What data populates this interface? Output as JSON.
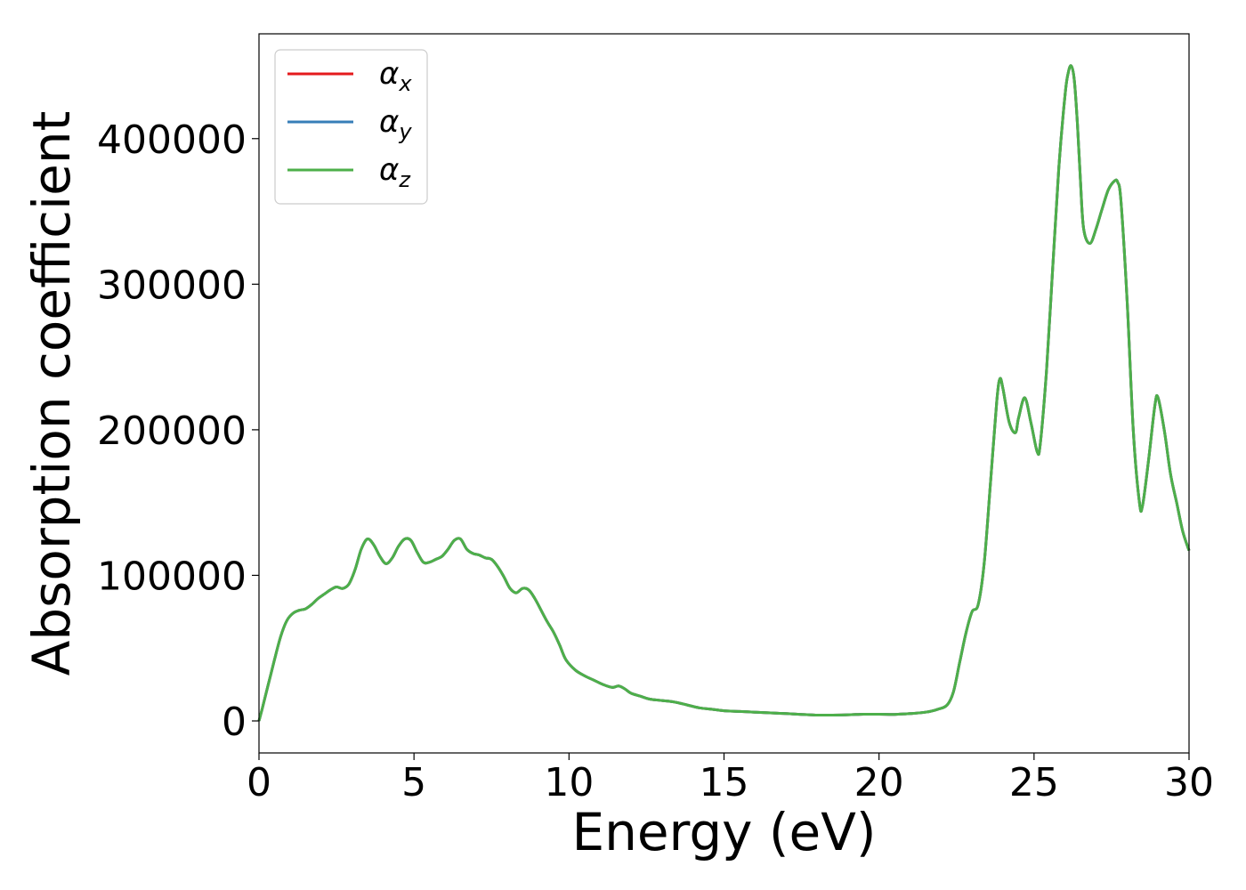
{
  "chart_data": {
    "type": "line",
    "title": "",
    "xlabel": "Energy (eV)",
    "ylabel": "Absorption coefficient",
    "xlim": [
      0,
      30
    ],
    "ylim": [
      -22000,
      472000
    ],
    "xticks": [
      0,
      5,
      10,
      15,
      20,
      25,
      30
    ],
    "xtick_labels": [
      "0",
      "5",
      "10",
      "15",
      "20",
      "25",
      "30"
    ],
    "yticks": [
      0,
      100000,
      200000,
      300000,
      400000
    ],
    "ytick_labels": [
      "0",
      "100000",
      "200000",
      "300000",
      "400000"
    ],
    "grid": false,
    "legend_position": "top-left",
    "x": [
      0,
      0.1,
      0.3,
      0.5,
      0.7,
      0.9,
      1.1,
      1.3,
      1.5,
      1.7,
      1.9,
      2.1,
      2.3,
      2.5,
      2.7,
      2.9,
      3.1,
      3.3,
      3.5,
      3.7,
      3.9,
      4.1,
      4.3,
      4.5,
      4.7,
      4.9,
      5.1,
      5.3,
      5.5,
      5.7,
      5.9,
      6.1,
      6.3,
      6.5,
      6.7,
      6.9,
      7.1,
      7.3,
      7.5,
      7.7,
      7.9,
      8.1,
      8.3,
      8.5,
      8.7,
      8.9,
      9.1,
      9.3,
      9.5,
      9.7,
      9.9,
      10.2,
      10.5,
      10.8,
      11.1,
      11.4,
      11.6,
      11.8,
      12.0,
      12.3,
      12.6,
      13.0,
      13.4,
      13.8,
      14.2,
      14.6,
      15.0,
      15.5,
      16.0,
      16.5,
      17.0,
      17.5,
      18.0,
      18.5,
      19.0,
      19.5,
      20.0,
      20.5,
      21.0,
      21.5,
      21.9,
      22.2,
      22.4,
      22.6,
      22.8,
      23.0,
      23.2,
      23.4,
      23.6,
      23.8,
      23.9,
      24.0,
      24.2,
      24.4,
      24.5,
      24.7,
      24.9,
      25.1,
      25.2,
      25.4,
      25.6,
      25.8,
      26.0,
      26.1,
      26.2,
      26.3,
      26.4,
      26.5,
      26.6,
      26.8,
      27.0,
      27.2,
      27.4,
      27.6,
      27.7,
      27.8,
      28.0,
      28.2,
      28.4,
      28.5,
      28.7,
      28.9,
      29.0,
      29.2,
      29.4,
      29.6,
      29.8,
      30.0
    ],
    "series": [
      {
        "name": "α_x",
        "color": "#e41a1c"
      },
      {
        "name": "α_y",
        "color": "#377eb8"
      },
      {
        "name": "α_z",
        "color": "#4daf4a"
      }
    ],
    "y": [
      0,
      8000,
      25000,
      42000,
      58000,
      69000,
      74000,
      76000,
      77000,
      80000,
      84000,
      87000,
      90000,
      92000,
      91000,
      94000,
      104000,
      118000,
      125000,
      121000,
      113000,
      108000,
      112000,
      120000,
      125000,
      124000,
      116000,
      109000,
      109000,
      111000,
      113000,
      118000,
      124000,
      125000,
      118000,
      115000,
      114000,
      112000,
      111000,
      106000,
      99000,
      91000,
      88000,
      91000,
      90000,
      84000,
      76000,
      68000,
      61000,
      52000,
      42000,
      35000,
      31000,
      28000,
      25000,
      23000,
      24000,
      22000,
      19000,
      17000,
      15000,
      14000,
      13000,
      11000,
      9000,
      8000,
      7000,
      6500,
      6000,
      5500,
      5000,
      4500,
      4000,
      4000,
      4200,
      4600,
      4600,
      4500,
      5000,
      6000,
      8000,
      11000,
      20000,
      40000,
      60000,
      75000,
      80000,
      110000,
      165000,
      220000,
      235000,
      228000,
      205000,
      198000,
      208000,
      222000,
      205000,
      185000,
      190000,
      240000,
      310000,
      380000,
      430000,
      445000,
      450000,
      440000,
      410000,
      370000,
      338000,
      328000,
      338000,
      352000,
      365000,
      371000,
      370000,
      358000,
      290000,
      200000,
      150000,
      148000,
      180000,
      217000,
      222000,
      200000,
      170000,
      150000,
      130000,
      117000
    ]
  }
}
